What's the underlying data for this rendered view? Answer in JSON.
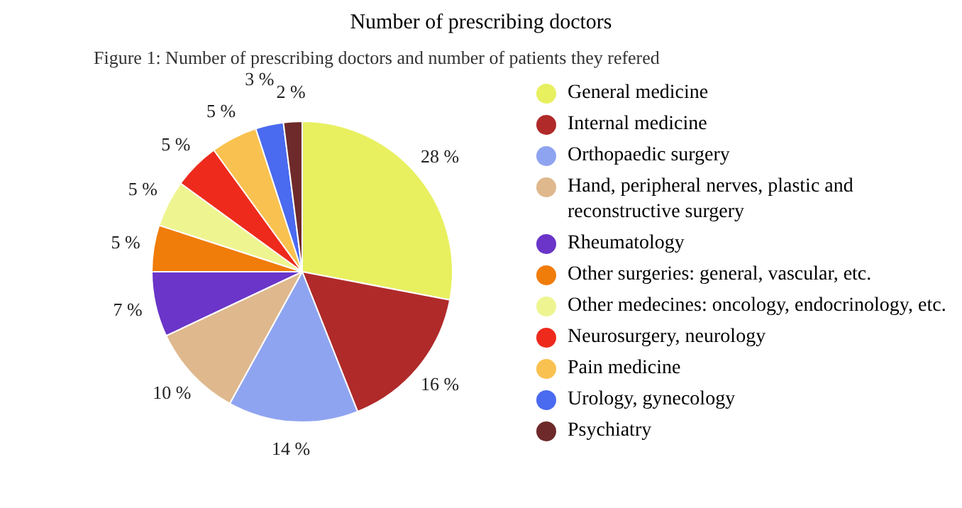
{
  "chart_data": {
    "type": "pie",
    "title": "Number of prescribing doctors",
    "subtitle": "Figure 1: Number of prescribing doctors and number of patients they refered",
    "categories": [
      "General medicine",
      "Internal medicine",
      "Orthopaedic surgery",
      "Hand, peripheral nerves, plastic and reconstructive surgery",
      "Rheumatology",
      "Other surgeries: general, vascular, etc.",
      "Other medecines: oncology, endocrinology, etc.",
      "Neurosurgery, neurology",
      "Pain medicine",
      "Urology, gynecology",
      "Psychiatry"
    ],
    "values": [
      28,
      16,
      14,
      10,
      7,
      5,
      5,
      5,
      5,
      3,
      2
    ],
    "value_labels": [
      "28 %",
      "16 %",
      "14 %",
      "10 %",
      "7 %",
      "5 %",
      "5 %",
      "5 %",
      "5 %",
      "3 %",
      "2 %"
    ],
    "colors": [
      "#e8f060",
      "#b02a2a",
      "#8fa4f0",
      "#dfb88d",
      "#6a35c8",
      "#f07c0a",
      "#eef590",
      "#ee2a1c",
      "#f9c14f",
      "#4a6af0",
      "#6e2a2a"
    ],
    "legend": "right"
  }
}
